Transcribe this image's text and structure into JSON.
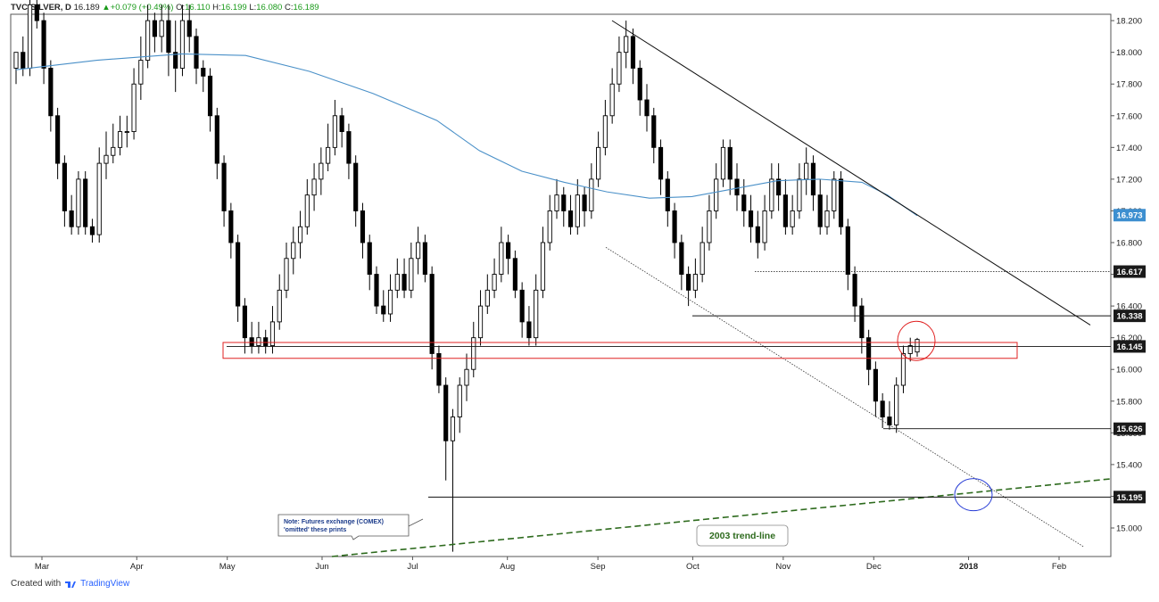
{
  "header": {
    "symbol": "TVC:SILVER, D",
    "last": "16.189",
    "change": "+0.079 (+0.49%)",
    "o_label": "O:",
    "o_value": "16.110",
    "h_label": "H:",
    "h_value": "16.199",
    "l_label": "L:",
    "l_value": "16.080",
    "c_label": "C:",
    "c_value": "16.189"
  },
  "footer": {
    "created_with": "Created with",
    "brand": "TradingView",
    "logo_icon": "tradingview-logo-icon"
  },
  "colors": {
    "ma_line": "#4a90c8",
    "zone_outline": "#e02020",
    "trend_2003": "#2e6b1e",
    "ellipse_red": "#e02020",
    "ellipse_blue": "#2a3fd6",
    "price_tag_bg": "#1a1a1a",
    "ma_tag_bg": "#3d8fd0",
    "candle_up": "#ffffff",
    "candle_down": "#000000"
  },
  "chart_data": {
    "type": "candlestick",
    "symbol": "TVC:SILVER",
    "interval": "D",
    "ylim": [
      14.82,
      18.24
    ],
    "y_ticks": [
      "18.200",
      "18.000",
      "17.800",
      "17.600",
      "17.400",
      "17.200",
      "17.000",
      "16.800",
      "16.600",
      "16.400",
      "16.200",
      "16.000",
      "15.800",
      "15.600",
      "15.400",
      "15.200",
      "15.000"
    ],
    "x_ticks": [
      "Mar",
      "Apr",
      "May",
      "Jun",
      "Jul",
      "Aug",
      "Sep",
      "Oct",
      "Nov",
      "Dec",
      "2018",
      "Feb"
    ],
    "price_labels": [
      "16.973",
      "16.617",
      "16.338",
      "16.145",
      "15.626",
      "15.195"
    ],
    "moving_average": {
      "points": [
        [
          1,
          17.89
        ],
        [
          20,
          17.95
        ],
        [
          40,
          17.99
        ],
        [
          55,
          17.98
        ],
        [
          70,
          17.88
        ],
        [
          85,
          17.74
        ],
        [
          100,
          17.57
        ],
        [
          110,
          17.38
        ],
        [
          120,
          17.25
        ],
        [
          130,
          17.18
        ],
        [
          140,
          17.12
        ],
        [
          150,
          17.08
        ],
        [
          160,
          17.09
        ],
        [
          170,
          17.14
        ],
        [
          180,
          17.19
        ],
        [
          190,
          17.2
        ],
        [
          200,
          17.18
        ],
        [
          206,
          17.1
        ],
        [
          213,
          16.97
        ]
      ]
    },
    "candles": [
      [
        1,
        17.9,
        18.0,
        17.8,
        18.0
      ],
      [
        2,
        18.0,
        17.9,
        17.85,
        18.1
      ],
      [
        3,
        17.9,
        18.3,
        17.85,
        18.35
      ],
      [
        4,
        18.3,
        18.2,
        18.15,
        18.4
      ],
      [
        5,
        18.2,
        17.9,
        17.8,
        18.25
      ],
      [
        6,
        17.9,
        17.6,
        17.5,
        17.95
      ],
      [
        7,
        17.6,
        17.3,
        17.2,
        17.65
      ],
      [
        8,
        17.3,
        17.0,
        16.9,
        17.35
      ],
      [
        9,
        17.0,
        16.9,
        16.85,
        17.1
      ],
      [
        10,
        16.9,
        17.2,
        16.85,
        17.25
      ],
      [
        11,
        17.2,
        16.9,
        16.85,
        17.25
      ],
      [
        12,
        16.9,
        16.85,
        16.8,
        16.95
      ],
      [
        13,
        16.85,
        17.3,
        16.8,
        17.4
      ],
      [
        14,
        17.3,
        17.35,
        17.2,
        17.5
      ],
      [
        15,
        17.35,
        17.4,
        17.3,
        17.55
      ],
      [
        16,
        17.4,
        17.5,
        17.35,
        17.6
      ],
      [
        17,
        17.5,
        17.5,
        17.4,
        17.6
      ],
      [
        18,
        17.5,
        17.8,
        17.45,
        17.9
      ],
      [
        19,
        17.8,
        17.95,
        17.7,
        18.1
      ],
      [
        20,
        17.95,
        18.2,
        17.9,
        18.3
      ],
      [
        21,
        18.2,
        18.1,
        18.0,
        18.25
      ],
      [
        22,
        18.1,
        18.2,
        18.0,
        18.3
      ],
      [
        23,
        18.2,
        18.0,
        17.85,
        18.3
      ],
      [
        24,
        18.0,
        17.9,
        17.75,
        18.2
      ],
      [
        25,
        17.9,
        18.2,
        17.85,
        18.3
      ],
      [
        26,
        18.2,
        18.1,
        18.0,
        18.3
      ],
      [
        27,
        18.1,
        17.9,
        17.8,
        18.15
      ],
      [
        28,
        17.9,
        17.85,
        17.75,
        17.95
      ],
      [
        29,
        17.85,
        17.6,
        17.5,
        17.9
      ],
      [
        30,
        17.6,
        17.3,
        17.2,
        17.65
      ],
      [
        31,
        17.3,
        17.0,
        16.9,
        17.35
      ],
      [
        32,
        17.0,
        16.8,
        16.7,
        17.05
      ],
      [
        33,
        16.8,
        16.4,
        16.3,
        16.85
      ],
      [
        34,
        16.4,
        16.2,
        16.1,
        16.45
      ],
      [
        35,
        16.2,
        16.15,
        16.1,
        16.3
      ],
      [
        36,
        16.15,
        16.2,
        16.1,
        16.3
      ],
      [
        37,
        16.2,
        16.15,
        16.1,
        16.25
      ],
      [
        38,
        16.15,
        16.3,
        16.1,
        16.4
      ],
      [
        39,
        16.3,
        16.5,
        16.25,
        16.6
      ],
      [
        40,
        16.5,
        16.7,
        16.45,
        16.8
      ],
      [
        41,
        16.7,
        16.8,
        16.6,
        16.9
      ],
      [
        42,
        16.8,
        16.9,
        16.7,
        17.0
      ],
      [
        43,
        16.9,
        17.1,
        16.85,
        17.2
      ],
      [
        44,
        17.1,
        17.2,
        17.0,
        17.3
      ],
      [
        45,
        17.2,
        17.3,
        17.1,
        17.4
      ],
      [
        46,
        17.3,
        17.4,
        17.25,
        17.55
      ],
      [
        47,
        17.4,
        17.6,
        17.35,
        17.7
      ],
      [
        48,
        17.6,
        17.5,
        17.4,
        17.65
      ],
      [
        49,
        17.5,
        17.3,
        17.2,
        17.55
      ],
      [
        50,
        17.3,
        17.0,
        16.9,
        17.35
      ],
      [
        51,
        17.0,
        16.8,
        16.7,
        17.05
      ],
      [
        52,
        16.8,
        16.6,
        16.5,
        16.85
      ],
      [
        53,
        16.6,
        16.4,
        16.35,
        16.65
      ],
      [
        54,
        16.4,
        16.35,
        16.3,
        16.5
      ],
      [
        55,
        16.35,
        16.5,
        16.3,
        16.6
      ],
      [
        56,
        16.5,
        16.6,
        16.45,
        16.7
      ],
      [
        57,
        16.6,
        16.5,
        16.45,
        16.7
      ],
      [
        58,
        16.5,
        16.7,
        16.45,
        16.8
      ],
      [
        59,
        16.7,
        16.8,
        16.6,
        16.9
      ],
      [
        60,
        16.8,
        16.6,
        16.55,
        16.85
      ],
      [
        61,
        16.6,
        16.1,
        16.0,
        16.65
      ],
      [
        62,
        16.1,
        15.9,
        15.85,
        16.15
      ],
      [
        63,
        15.9,
        15.55,
        15.3,
        15.95
      ],
      [
        64,
        15.55,
        15.7,
        14.85,
        15.75
      ],
      [
        65,
        15.7,
        15.9,
        15.6,
        15.95
      ],
      [
        66,
        15.9,
        16.0,
        15.8,
        16.1
      ],
      [
        67,
        16.0,
        16.2,
        15.95,
        16.3
      ],
      [
        68,
        16.2,
        16.4,
        16.15,
        16.5
      ],
      [
        69,
        16.4,
        16.5,
        16.35,
        16.6
      ],
      [
        70,
        16.5,
        16.6,
        16.45,
        16.7
      ],
      [
        71,
        16.6,
        16.8,
        16.55,
        16.9
      ],
      [
        72,
        16.8,
        16.7,
        16.6,
        16.85
      ],
      [
        73,
        16.7,
        16.5,
        16.45,
        16.75
      ],
      [
        74,
        16.5,
        16.3,
        16.2,
        16.55
      ],
      [
        75,
        16.3,
        16.2,
        16.15,
        16.4
      ],
      [
        76,
        16.2,
        16.5,
        16.15,
        16.6
      ],
      [
        77,
        16.5,
        16.8,
        16.45,
        16.9
      ],
      [
        78,
        16.8,
        17.0,
        16.75,
        17.1
      ],
      [
        79,
        17.0,
        17.1,
        16.95,
        17.2
      ],
      [
        80,
        17.1,
        17.0,
        16.9,
        17.15
      ],
      [
        81,
        17.0,
        16.9,
        16.85,
        17.1
      ],
      [
        82,
        16.9,
        17.1,
        16.85,
        17.2
      ],
      [
        83,
        17.1,
        17.0,
        16.9,
        17.15
      ],
      [
        84,
        17.0,
        17.2,
        16.95,
        17.3
      ],
      [
        85,
        17.2,
        17.4,
        17.15,
        17.5
      ],
      [
        86,
        17.4,
        17.6,
        17.35,
        17.7
      ],
      [
        87,
        17.6,
        17.8,
        17.55,
        17.9
      ],
      [
        88,
        17.8,
        18.0,
        17.75,
        18.1
      ],
      [
        89,
        18.0,
        18.1,
        17.9,
        18.2
      ],
      [
        90,
        18.1,
        17.9,
        17.8,
        18.15
      ],
      [
        91,
        17.9,
        17.7,
        17.6,
        17.95
      ],
      [
        92,
        17.7,
        17.6,
        17.5,
        17.8
      ],
      [
        93,
        17.6,
        17.4,
        17.3,
        17.65
      ],
      [
        94,
        17.4,
        17.2,
        17.1,
        17.45
      ],
      [
        95,
        17.2,
        17.0,
        16.9,
        17.25
      ],
      [
        96,
        17.0,
        16.8,
        16.7,
        17.05
      ],
      [
        97,
        16.8,
        16.6,
        16.5,
        16.85
      ],
      [
        98,
        16.6,
        16.5,
        16.4,
        16.65
      ],
      [
        99,
        16.5,
        16.6,
        16.45,
        16.7
      ],
      [
        100,
        16.6,
        16.8,
        16.55,
        16.9
      ],
      [
        101,
        16.8,
        17.0,
        16.75,
        17.1
      ],
      [
        102,
        17.0,
        17.2,
        16.95,
        17.3
      ],
      [
        103,
        17.2,
        17.4,
        17.15,
        17.45
      ],
      [
        104,
        17.4,
        17.2,
        17.1,
        17.45
      ],
      [
        105,
        17.2,
        17.1,
        17.0,
        17.3
      ],
      [
        106,
        17.1,
        17.0,
        16.9,
        17.2
      ],
      [
        107,
        17.0,
        16.9,
        16.8,
        17.1
      ],
      [
        108,
        16.9,
        16.8,
        16.7,
        17.0
      ],
      [
        109,
        16.8,
        17.0,
        16.75,
        17.1
      ],
      [
        110,
        17.0,
        17.2,
        16.95,
        17.3
      ],
      [
        111,
        17.2,
        17.1,
        17.0,
        17.3
      ],
      [
        112,
        17.1,
        16.9,
        16.85,
        17.2
      ],
      [
        113,
        16.9,
        17.0,
        16.85,
        17.1
      ],
      [
        114,
        17.0,
        17.2,
        16.95,
        17.3
      ],
      [
        115,
        17.2,
        17.3,
        17.1,
        17.4
      ],
      [
        116,
        17.3,
        17.1,
        17.0,
        17.35
      ],
      [
        117,
        17.1,
        16.9,
        16.85,
        17.2
      ],
      [
        118,
        16.9,
        17.0,
        16.85,
        17.1
      ],
      [
        119,
        17.0,
        17.2,
        16.95,
        17.25
      ],
      [
        120,
        17.2,
        16.9,
        16.85,
        17.25
      ],
      [
        121,
        16.9,
        16.6,
        16.5,
        16.95
      ],
      [
        122,
        16.6,
        16.4,
        16.3,
        16.65
      ],
      [
        123,
        16.4,
        16.2,
        16.1,
        16.45
      ],
      [
        124,
        16.2,
        16.0,
        15.9,
        16.25
      ],
      [
        125,
        16.0,
        15.8,
        15.7,
        16.05
      ],
      [
        126,
        15.8,
        15.7,
        15.63,
        15.85
      ],
      [
        127,
        15.7,
        15.65,
        15.62,
        15.8
      ],
      [
        128,
        15.65,
        15.9,
        15.6,
        15.95
      ],
      [
        129,
        15.9,
        16.1,
        15.85,
        16.15
      ],
      [
        130,
        16.1,
        16.15,
        16.05,
        16.2
      ],
      [
        131,
        16.11,
        16.189,
        16.08,
        16.199
      ]
    ]
  },
  "annotations": {
    "note_line1": "Note: Futures exchange (COMEX)",
    "note_line2": "'omitted' these prints",
    "trend_label": "2003 trend-line"
  }
}
